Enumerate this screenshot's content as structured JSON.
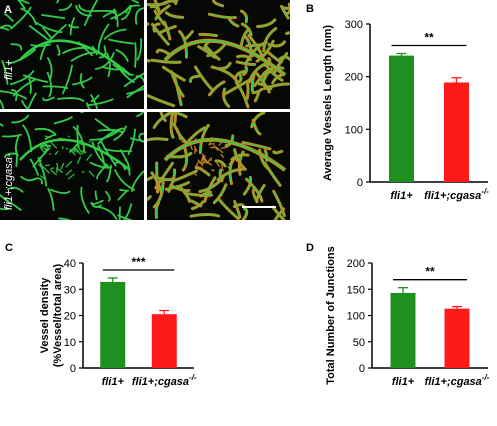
{
  "panel_labels": {
    "a": "A",
    "b": "B",
    "c": "C",
    "d": "D"
  },
  "micrographs": {
    "row_labels": [
      "fli1+",
      "fli1+;cgasa-"
    ],
    "colors": {
      "vessel": "#33cc4a",
      "overlay": "#cc8a22",
      "background": "#060806",
      "scale_bar": "#ffffff"
    }
  },
  "colors": {
    "green": "#1f8f1f",
    "red": "#ff1a1a"
  },
  "chart_data": [
    {
      "panel": "B",
      "type": "bar",
      "categories": [
        "fli1+",
        "fli1+;cgasa"
      ],
      "category_superscript": [
        "",
        "-/-"
      ],
      "values": [
        240,
        189
      ],
      "errors": [
        4,
        9
      ],
      "ylabel": "Average Vessels Length (mm)",
      "ylim": [
        0,
        300
      ],
      "yticks": [
        0,
        100,
        200,
        300
      ],
      "significance": "**",
      "colors": [
        "#1f8f1f",
        "#ff1a1a"
      ]
    },
    {
      "panel": "C",
      "type": "bar",
      "categories": [
        "fli1+",
        "fli1+;cgasa"
      ],
      "category_superscript": [
        "",
        "-/-"
      ],
      "values": [
        32.8,
        20.5
      ],
      "errors": [
        1.5,
        1.4
      ],
      "ylabel": "Vessel density (%Vessel/total area)",
      "ylabel_lines": [
        "Vessel density",
        "(%Vessel/total area)"
      ],
      "ylim": [
        0,
        40
      ],
      "yticks": [
        0,
        10,
        20,
        30,
        40
      ],
      "significance": "***",
      "colors": [
        "#1f8f1f",
        "#ff1a1a"
      ]
    },
    {
      "panel": "D",
      "type": "bar",
      "categories": [
        "fli1+",
        "fli1+;cgasa"
      ],
      "category_superscript": [
        "",
        "-/-"
      ],
      "values": [
        143,
        113
      ],
      "errors": [
        10,
        4
      ],
      "ylabel": "Total Number of Junctions",
      "ylim": [
        0,
        200
      ],
      "yticks": [
        0,
        50,
        100,
        150,
        200
      ],
      "significance": "**",
      "colors": [
        "#1f8f1f",
        "#ff1a1a"
      ]
    }
  ]
}
